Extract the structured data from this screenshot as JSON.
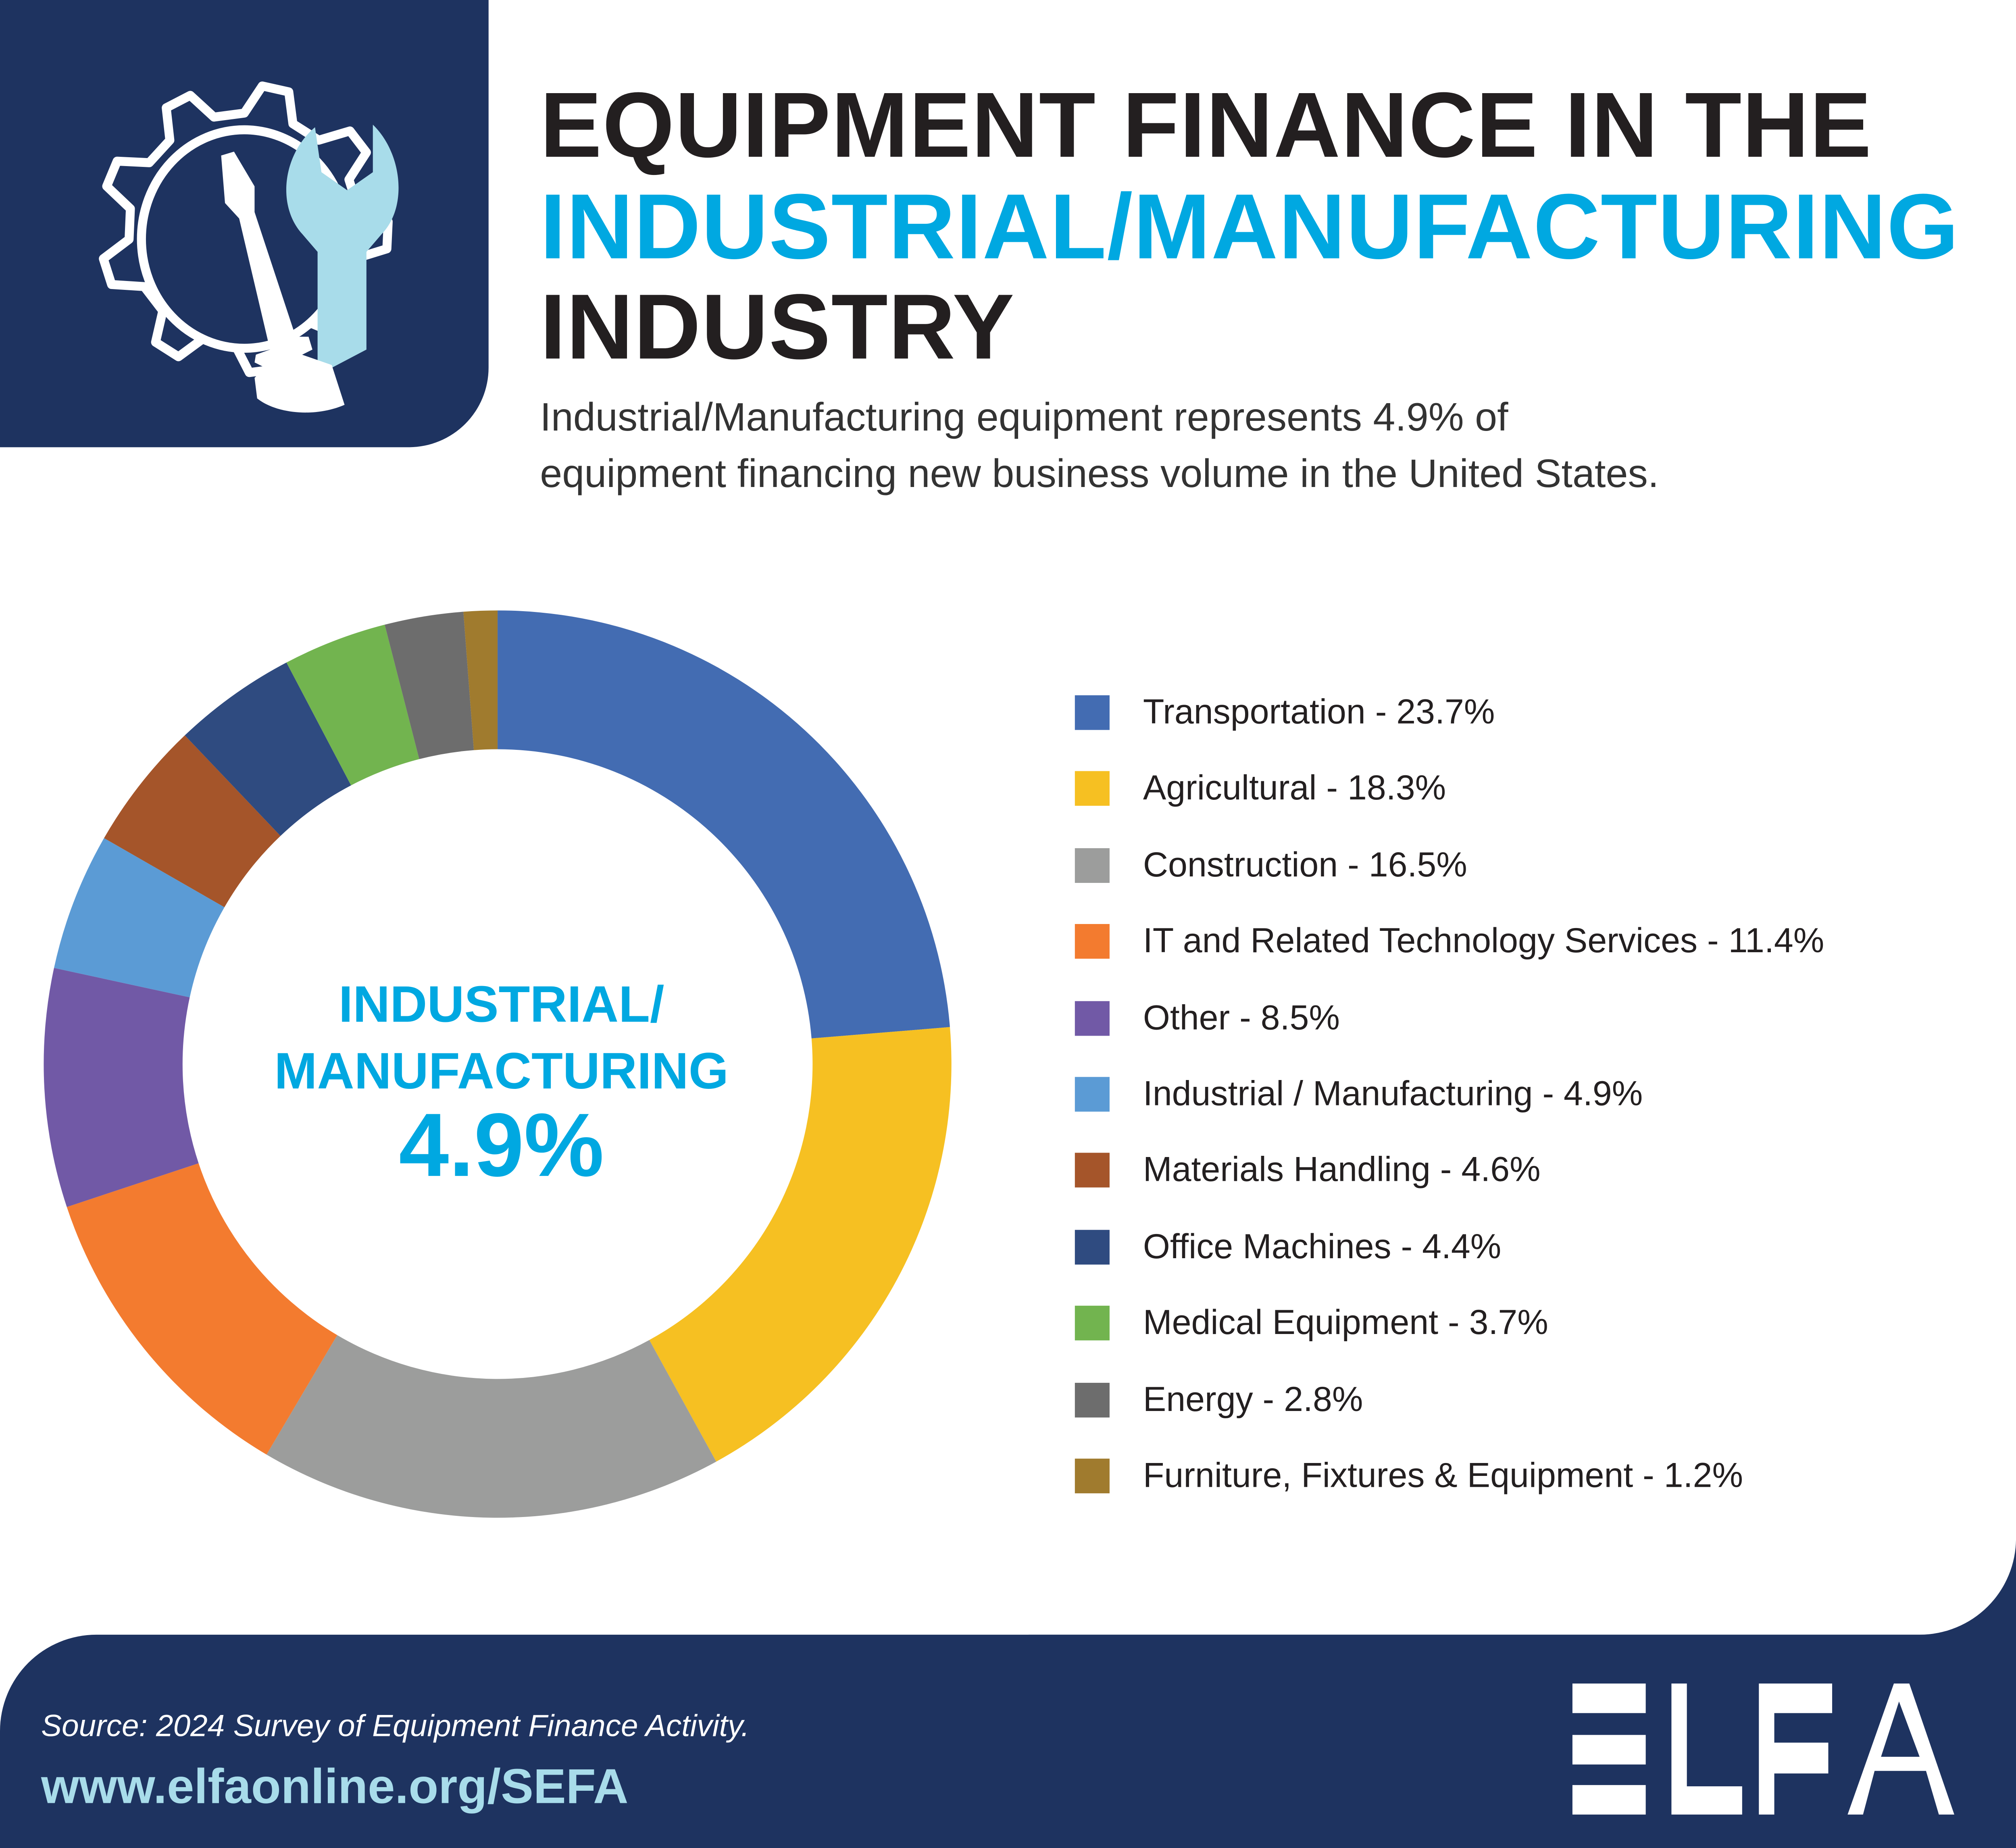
{
  "header": {
    "title_line1": "EQUIPMENT FINANCE IN THE",
    "title_line2": "INDUSTRIAL/MANUFACTURING",
    "title_line3": "INDUSTRY",
    "subtitle_line1": "Industrial/Manufacturing equipment represents 4.9% of",
    "subtitle_line2": "equipment financing new business volume in the United States.",
    "icon": "gear-wrench-screwdriver-icon"
  },
  "center_label": {
    "line1": "INDUSTRIAL/",
    "line2": "MANUFACTURING",
    "value": "4.9%"
  },
  "chart_data": {
    "type": "pie",
    "variant": "donut",
    "start": "top, clockwise",
    "legend_position": "right",
    "categories": [
      "Transportation",
      "Agricultural",
      "Construction",
      "IT and Related Technology Services",
      "Other",
      "Industrial / Manufacturing",
      "Materials Handling",
      "Office Machines",
      "Medical Equipment",
      "Energy",
      "Furniture, Fixtures & Equipment"
    ],
    "values": [
      23.7,
      18.3,
      16.5,
      11.4,
      8.5,
      4.9,
      4.6,
      4.4,
      3.7,
      2.8,
      1.2
    ],
    "colors": [
      "#436cb2",
      "#f6c022",
      "#9c9d9c",
      "#f37b2f",
      "#7159a6",
      "#5b9bd5",
      "#a5552a",
      "#2f4b80",
      "#72b44f",
      "#6d6d6d",
      "#a07b2e"
    ],
    "legend": [
      "Transportation - 23.7%",
      "Agricultural - 18.3%",
      "Construction - 16.5%",
      "IT and Related Technology Services - 11.4%",
      "Other - 8.5%",
      "Industrial / Manufacturing - 4.9%",
      "Materials Handling - 4.6%",
      "Office Machines - 4.4%",
      "Medical Equipment - 3.7%",
      "Energy - 2.8%",
      "Furniture, Fixtures & Equipment - 1.2%"
    ]
  },
  "footer": {
    "source": "Source: 2024 Survey of Equipment Finance Activity.",
    "url": "www.elfaonline.org/SEFA",
    "logo_text": "ELFA"
  },
  "colors": {
    "navy": "#1e3360",
    "accent": "#00a8e1",
    "url": "#a8dcea"
  }
}
